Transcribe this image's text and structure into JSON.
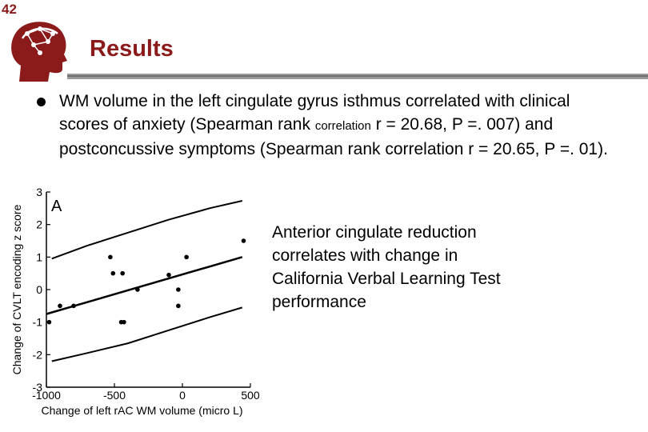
{
  "slide": {
    "number": "42",
    "title": "Results",
    "bullet": {
      "part1": "WM volume in the left cingulate gyrus isthmus correlated with clinical scores of anxiety (Spearman rank ",
      "small": "correlation",
      "part2": " r = 20.68, P =. 007) and postconcussive symptoms (Spearman rank correlation r = 20.65, P =. 01)."
    },
    "side_text": "Anterior cingulate reduction correlates with change in California Verbal Learning Test performance",
    "logo_icon": "head-brain-network-icon"
  },
  "chart_data": {
    "type": "scatter",
    "panel_label": "A",
    "xlabel": "Change of left rAC WM volume (micro L)",
    "ylabel": "Change of CVLT encoding z score",
    "xlim": [
      -1000,
      500
    ],
    "ylim": [
      -3,
      3
    ],
    "x_ticks": [
      -1000,
      -500,
      0,
      500
    ],
    "y_ticks": [
      3,
      2,
      1,
      0,
      -1,
      -2,
      -3
    ],
    "points": [
      {
        "x": -980,
        "y": -1.0
      },
      {
        "x": -900,
        "y": -0.5
      },
      {
        "x": -800,
        "y": -0.5
      },
      {
        "x": -530,
        "y": 1.0
      },
      {
        "x": -510,
        "y": 0.5
      },
      {
        "x": -440,
        "y": 0.5
      },
      {
        "x": -450,
        "y": -1.0
      },
      {
        "x": -430,
        "y": -1.0
      },
      {
        "x": -330,
        "y": 0.0
      },
      {
        "x": -100,
        "y": 0.45
      },
      {
        "x": -30,
        "y": 0.0
      },
      {
        "x": -30,
        "y": -0.5
      },
      {
        "x": 30,
        "y": 1.0
      },
      {
        "x": 450,
        "y": 1.5
      }
    ],
    "fit_line": {
      "x": [
        -1000,
        440
      ],
      "y": [
        -0.75,
        1.0
      ]
    },
    "upper_band": {
      "x": [
        -960,
        -700,
        -400,
        -100,
        200,
        440
      ],
      "y": [
        0.95,
        1.35,
        1.75,
        2.15,
        2.5,
        2.73
      ]
    },
    "lower_band": {
      "x": [
        -960,
        -700,
        -400,
        -100,
        200,
        440
      ],
      "y": [
        -2.2,
        -1.95,
        -1.65,
        -1.25,
        -0.85,
        -0.55
      ]
    },
    "grid": false,
    "legend": "none"
  }
}
